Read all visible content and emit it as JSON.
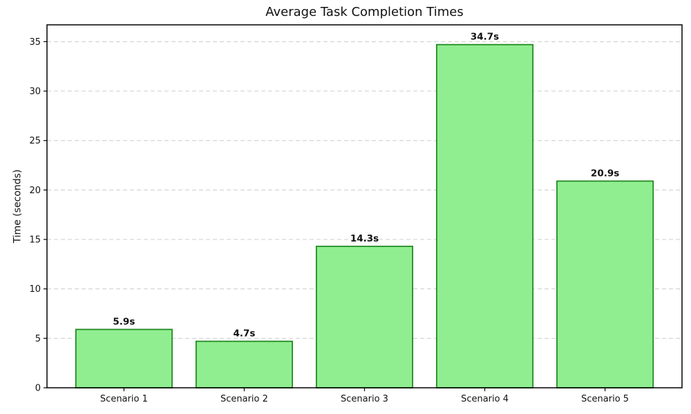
{
  "chart_data": {
    "type": "bar",
    "title": "Average Task Completion Times",
    "xlabel": "",
    "ylabel": "Time (seconds)",
    "categories": [
      "Scenario 1",
      "Scenario 2",
      "Scenario 3",
      "Scenario 4",
      "Scenario 5"
    ],
    "values": [
      5.9,
      4.7,
      14.3,
      34.7,
      20.9
    ],
    "bar_labels": [
      "5.9s",
      "4.7s",
      "14.3s",
      "34.7s",
      "20.9s"
    ],
    "ylim": [
      0,
      36.7
    ],
    "yticks": [
      0,
      5,
      10,
      15,
      20,
      25,
      30,
      35
    ],
    "grid": "horizontal-dashed",
    "legend": "none",
    "colors": {
      "bar_fill": "#90EE90",
      "bar_edge": "#228B22",
      "grid_line": "#cccccc",
      "spine": "#000000",
      "text": "#111111",
      "background": "#ffffff"
    }
  }
}
